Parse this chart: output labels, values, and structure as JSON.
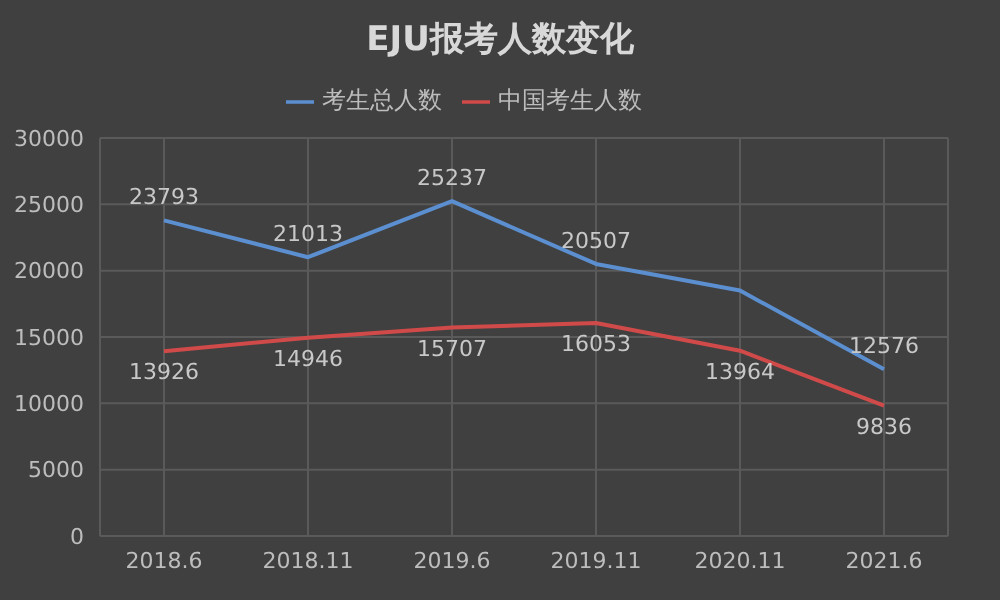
{
  "chart_data": {
    "type": "line",
    "title": "EJU报考人数变化",
    "categories": [
      "2018.6",
      "2018.11",
      "2019.6",
      "2019.11",
      "2020.11",
      "2021.6"
    ],
    "series": [
      {
        "name": "考生总人数",
        "color": "#5b8fd0",
        "values": [
          23793,
          21013,
          25237,
          20507,
          18500,
          12576
        ],
        "value_labels": [
          "23793",
          "21013",
          "25237",
          "20507",
          null,
          "12576"
        ]
      },
      {
        "name": "中国考生人数",
        "color": "#d04a4a",
        "values": [
          13926,
          14946,
          15707,
          16053,
          13964,
          9836
        ],
        "value_labels": [
          "13926",
          "14946",
          "15707",
          "16053",
          "13964",
          "9836"
        ]
      }
    ],
    "ylim": [
      0,
      30000
    ],
    "yticks": [
      0,
      5000,
      10000,
      15000,
      20000,
      25000,
      30000
    ],
    "grid": true,
    "legend": "top",
    "marker": "none",
    "line_style": "solid"
  }
}
